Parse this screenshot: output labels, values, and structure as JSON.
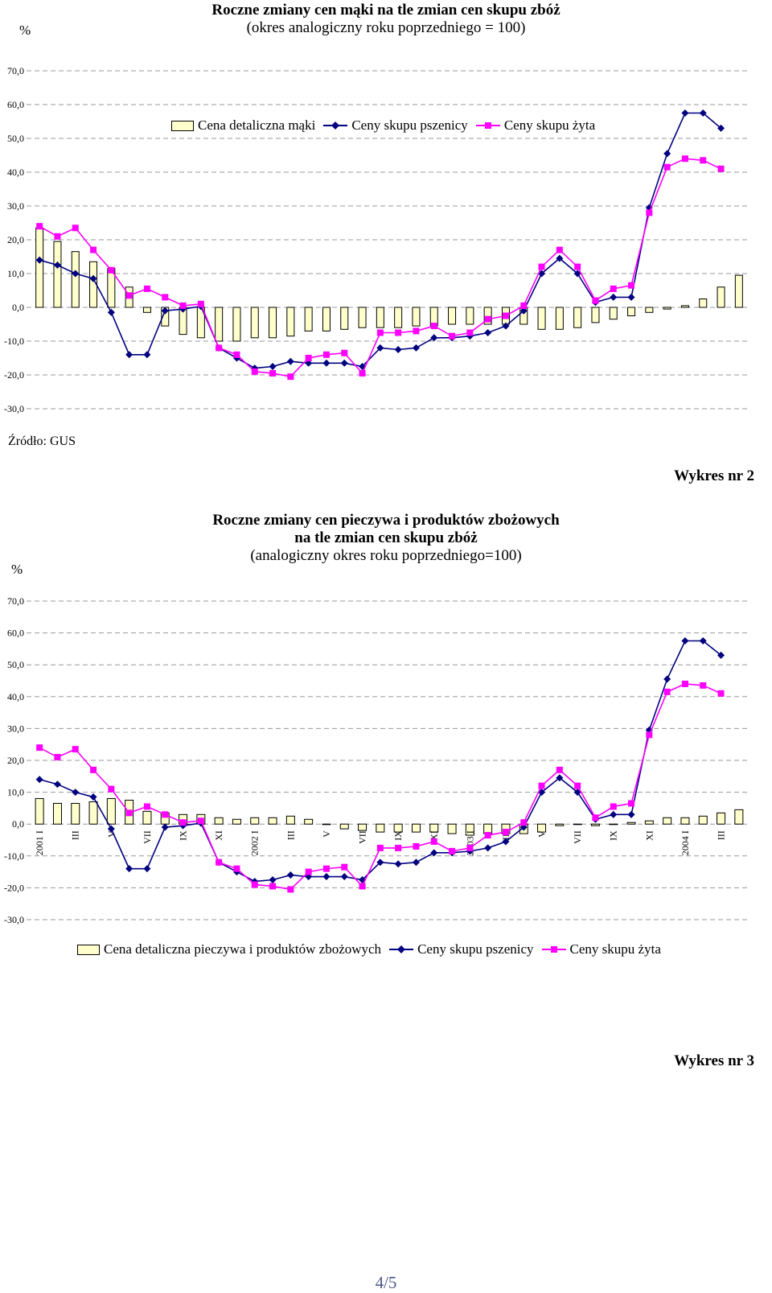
{
  "page_number": "4/5",
  "chart_data": [
    {
      "type": "bar+line",
      "unit_label": "%",
      "title": "Roczne zmiany cen mąki na tle zmian cen skupu zbóż",
      "subtitle": "(okres analogiczny roku poprzedniego = 100)",
      "source": "Źródło: GUS",
      "ylim": [
        -30,
        70
      ],
      "y_ticks": [
        "70,0",
        "60,0",
        "50,0",
        "40,0",
        "30,0",
        "20,0",
        "10,0",
        "0,0",
        "-10,0",
        "-20,0",
        "-30,0"
      ],
      "grid": true,
      "legend_position": "top",
      "x_tick_labels": [],
      "series": [
        {
          "name": "Cena detaliczna mąki",
          "kind": "bar",
          "color": "#ffffcc",
          "values": [
            23.5,
            19.5,
            16.5,
            13.5,
            11.5,
            6.0,
            -1.5,
            -5.5,
            -8.0,
            -9.0,
            -10.0,
            -10.0,
            -9.0,
            -9.0,
            -8.5,
            -7.0,
            -7.0,
            -6.5,
            -6.0,
            -6.0,
            -6.0,
            -5.5,
            -5.5,
            -5.0,
            -5.0,
            -5.0,
            -5.0,
            -5.0,
            -6.5,
            -6.5,
            -6.0,
            -4.5,
            -3.5,
            -2.5,
            -1.5,
            -0.5,
            0.5,
            2.5,
            6.0,
            9.5
          ]
        },
        {
          "name": "Ceny skupu pszenicy",
          "kind": "line",
          "color": "#000080",
          "marker": "diamond",
          "values": [
            14.0,
            12.5,
            10.0,
            8.5,
            -1.5,
            -14.0,
            -14.0,
            -1.0,
            -0.5,
            0.3,
            -12.0,
            -15.0,
            -18.0,
            -17.5,
            -16.0,
            -16.5,
            -16.5,
            -16.5,
            -17.5,
            -12.0,
            -12.5,
            -12.0,
            -9.0,
            -9.0,
            -8.5,
            -7.5,
            -5.5,
            -1.0,
            10.0,
            14.5,
            10.0,
            1.5,
            3.0,
            3.0,
            29.5,
            45.5,
            57.5,
            57.5,
            53.0
          ]
        },
        {
          "name": "Ceny skupu żyta",
          "kind": "line",
          "color": "#ff00ff",
          "marker": "square",
          "values": [
            24.0,
            21.0,
            23.5,
            17.0,
            11.0,
            3.5,
            5.5,
            3.0,
            0.5,
            1.0,
            -12.0,
            -14.0,
            -19.0,
            -19.5,
            -20.5,
            -15.0,
            -14.0,
            -13.5,
            -19.5,
            -7.5,
            -7.5,
            -7.0,
            -5.5,
            -8.5,
            -7.5,
            -3.5,
            -2.5,
            0.5,
            12.0,
            17.0,
            12.0,
            2.0,
            5.5,
            6.5,
            28.0,
            41.5,
            44.0,
            43.5,
            41.0
          ]
        }
      ]
    },
    {
      "type": "bar+line",
      "chart_label": "Wykres nr 2",
      "unit_label": "%",
      "title_lines": [
        "Roczne zmiany cen pieczywa i produktów zbożowych",
        "na tle zmian cen skupu zbóż"
      ],
      "subtitle": "(analogiczny okres roku poprzedniego=100)",
      "ylim": [
        -30,
        70
      ],
      "y_ticks": [
        "70,0",
        "60,0",
        "50,0",
        "40,0",
        "30,0",
        "20,0",
        "10,0",
        "0,0",
        "-10,0",
        "-20,0",
        "-30,0"
      ],
      "grid": true,
      "legend_position": "bottom",
      "x_tick_labels": [
        "2001 I",
        "III",
        "V",
        "VII",
        "IX",
        "XI",
        "2002 I",
        "III",
        "V",
        "VII",
        "IX",
        "XI",
        "2003 I",
        "III",
        "V",
        "VII",
        "IX",
        "XI",
        "2004 I",
        "III"
      ],
      "series": [
        {
          "name": "Cena detaliczna pieczywa i produktów zbożowych",
          "kind": "bar",
          "color": "#ffffcc",
          "values": [
            8.0,
            6.5,
            6.5,
            7.0,
            8.0,
            7.5,
            4.0,
            3.5,
            3.0,
            3.0,
            2.0,
            1.5,
            2.0,
            2.0,
            2.5,
            1.5,
            0.0,
            -1.5,
            -2.0,
            -2.5,
            -2.5,
            -2.5,
            -2.5,
            -3.0,
            -3.5,
            -3.0,
            -3.0,
            -3.0,
            -2.5,
            -0.5,
            0.0,
            -0.5,
            0.0,
            0.5,
            1.0,
            2.0,
            2.0,
            2.5,
            3.5,
            4.5
          ]
        },
        {
          "name": "Ceny skupu pszenicy",
          "kind": "line",
          "color": "#000080",
          "marker": "diamond",
          "values": [
            14.0,
            12.5,
            10.0,
            8.5,
            -1.5,
            -14.0,
            -14.0,
            -1.0,
            -0.5,
            0.3,
            -12.0,
            -15.0,
            -18.0,
            -17.5,
            -16.0,
            -16.5,
            -16.5,
            -16.5,
            -17.5,
            -12.0,
            -12.5,
            -12.0,
            -9.0,
            -9.0,
            -8.5,
            -7.5,
            -5.5,
            -1.0,
            10.0,
            14.5,
            10.0,
            1.5,
            3.0,
            3.0,
            29.5,
            45.5,
            57.5,
            57.5,
            53.0
          ]
        },
        {
          "name": "Ceny skupu żyta",
          "kind": "line",
          "color": "#ff00ff",
          "marker": "square",
          "values": [
            24.0,
            21.0,
            23.5,
            17.0,
            11.0,
            3.5,
            5.5,
            3.0,
            0.5,
            1.0,
            -12.0,
            -14.0,
            -19.0,
            -19.5,
            -20.5,
            -15.0,
            -14.0,
            -13.5,
            -19.5,
            -7.5,
            -7.5,
            -7.0,
            -5.5,
            -8.5,
            -7.5,
            -3.5,
            -2.5,
            0.5,
            12.0,
            17.0,
            12.0,
            2.0,
            5.5,
            6.5,
            28.0,
            41.5,
            44.0,
            43.5,
            41.0
          ]
        }
      ]
    }
  ],
  "footer_label": "Wykres nr 3"
}
